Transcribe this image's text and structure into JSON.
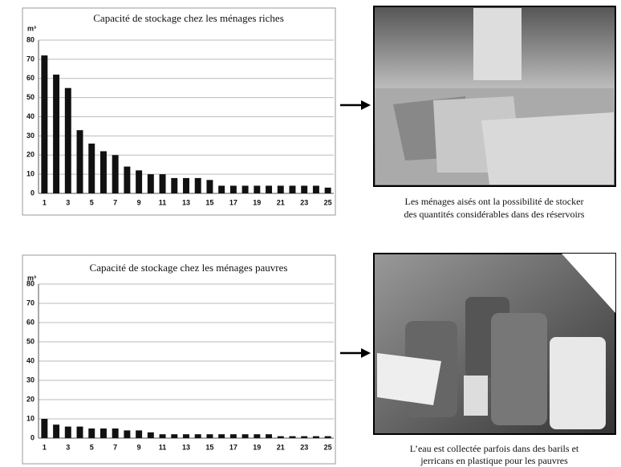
{
  "chart_data": [
    {
      "type": "bar",
      "title": "Capacité de stockage chez les ménages riches",
      "y_label": "m³",
      "categories": [
        "1",
        null,
        "3",
        null,
        "5",
        null,
        "7",
        null,
        "9",
        null,
        "11",
        null,
        "13",
        null,
        "15",
        null,
        "17",
        null,
        "19",
        null,
        "21",
        null,
        "23",
        null,
        "25"
      ],
      "values": [
        72,
        62,
        55,
        33,
        26,
        22,
        20,
        14,
        12,
        10,
        10,
        8,
        8,
        8,
        7,
        4,
        4,
        4,
        4,
        4,
        4,
        4,
        4,
        4,
        3
      ],
      "color": "#111111",
      "ylim": [
        0,
        80
      ],
      "yticks": [
        0,
        10,
        20,
        30,
        40,
        50,
        60,
        70,
        80
      ],
      "grid": true
    },
    {
      "type": "bar",
      "title": "Capacité de stockage chez les ménages pauvres",
      "y_label": "m³",
      "categories": [
        "1",
        null,
        "3",
        null,
        "5",
        null,
        "7",
        null,
        "9",
        null,
        "11",
        null,
        "13",
        null,
        "15",
        null,
        "17",
        null,
        "19",
        null,
        "21",
        null,
        "23",
        null,
        "25"
      ],
      "values": [
        10,
        7,
        6,
        6,
        5,
        5,
        5,
        4,
        4,
        3,
        2,
        2,
        2,
        2,
        2,
        2,
        2,
        2,
        2,
        2,
        1,
        1,
        1,
        1,
        1
      ],
      "color": "#111111",
      "ylim": [
        0,
        80
      ],
      "yticks": [
        0,
        10,
        20,
        30,
        40,
        50,
        60,
        70,
        80
      ],
      "grid": true
    }
  ],
  "captions": [
    {
      "lines": [
        "Les ménages aisés ont la possibilité de stocker",
        "des quantités considérables dans des réservoirs"
      ]
    },
    {
      "lines": [
        "L’eau est collectée parfois dans des barils et",
        "jerricans en plastique pour les pauvres"
      ]
    }
  ]
}
